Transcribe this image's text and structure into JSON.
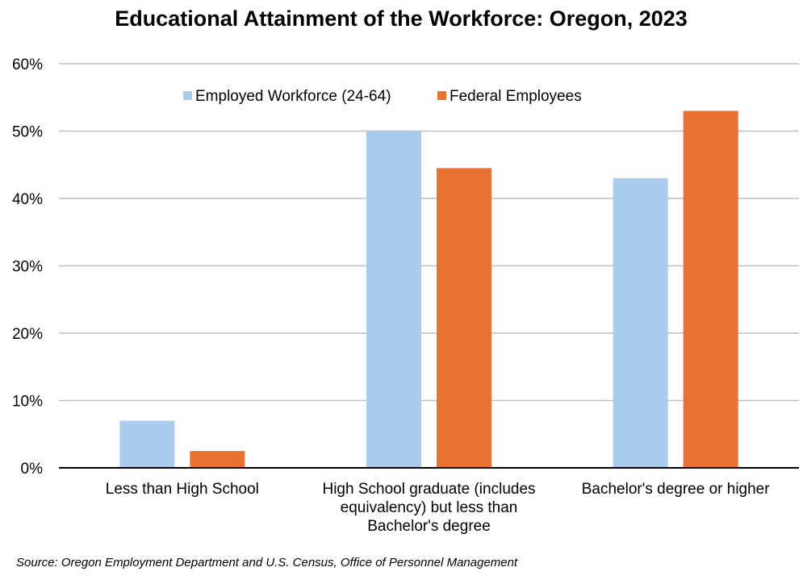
{
  "chart_data": {
    "type": "bar",
    "title": "Educational Attainment of the Workforce: Oregon, 2023",
    "categories": [
      [
        "Less than High School"
      ],
      [
        "High School graduate (includes",
        "equivalency) but less than",
        "Bachelor's degree"
      ],
      [
        "Bachelor's degree or higher"
      ]
    ],
    "series": [
      {
        "name": "Employed Workforce (24-64)",
        "color": "#A9CBEC",
        "values": [
          7,
          50,
          43
        ]
      },
      {
        "name": "Federal Employees",
        "color": "#E97132",
        "values": [
          2.5,
          44.5,
          53
        ]
      }
    ],
    "ylim": [
      0,
      60
    ],
    "yticks": [
      0,
      10,
      20,
      30,
      40,
      50,
      60
    ],
    "ytick_labels": [
      "0%",
      "10%",
      "20%",
      "30%",
      "40%",
      "50%",
      "60%"
    ],
    "grid": true,
    "legend_position": "top-center",
    "xlabel": "",
    "ylabel": ""
  },
  "source": "Source: Oregon Employment Department and U.S. Census, Office of Personnel Management"
}
